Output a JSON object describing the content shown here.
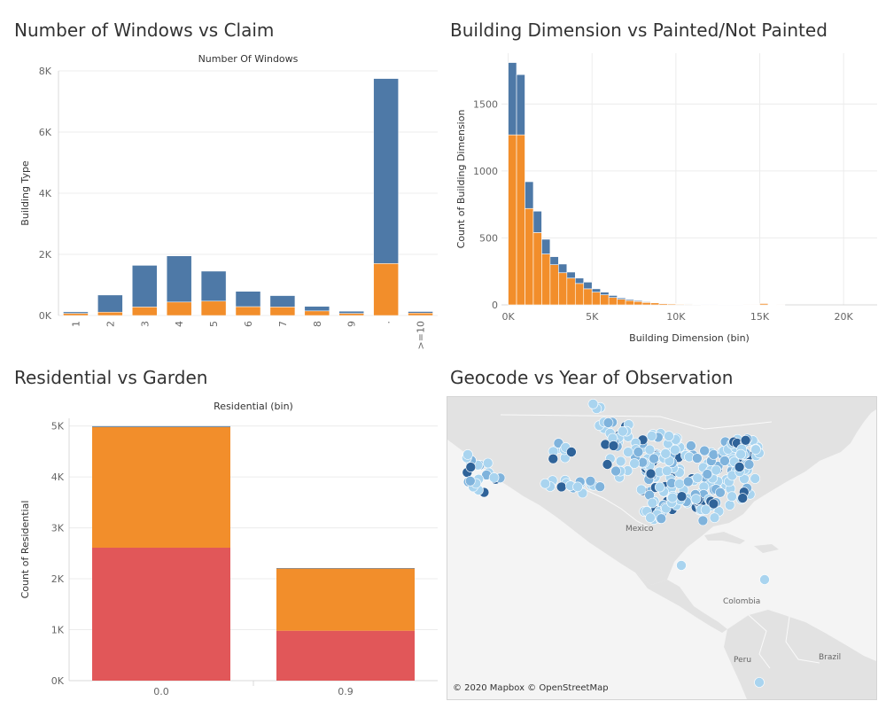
{
  "titles": {
    "windows": "Number of Windows vs Claim",
    "dimension": "Building Dimension vs Painted/Not Painted",
    "residential": "Residential vs Garden",
    "geocode": "Geocode vs Year of Observation"
  },
  "colors": {
    "blue": "#4e79a7",
    "orange": "#f28e2b",
    "red": "#e15759",
    "land": "#e2e2e2",
    "water": "#f4f4f4",
    "dot_light": "#a9d4ef",
    "dot_mid": "#7fb3dc",
    "dot_dark": "#2f6399"
  },
  "chart_data": [
    {
      "type": "bar",
      "stacked": true,
      "title": "Number of Windows vs Claim",
      "subtitle": "Number Of Windows",
      "ylabel": "Building Type",
      "xlabel": "",
      "categories": [
        "1",
        "2",
        "3",
        "4",
        "5",
        "6",
        "7",
        "8",
        "9",
        ".",
        ">=10"
      ],
      "ylim": [
        0,
        8000
      ],
      "yticks": [
        0,
        2000,
        4000,
        6000,
        8000
      ],
      "ytick_labels": [
        "0K",
        "2K",
        "4K",
        "6K",
        "8K"
      ],
      "series": [
        {
          "values": [
            70,
            110,
            280,
            440,
            470,
            290,
            280,
            150,
            70,
            1700,
            80
          ]
        },
        {
          "values": [
            50,
            560,
            1360,
            1510,
            980,
            500,
            370,
            150,
            70,
            6050,
            50
          ]
        }
      ],
      "grid": true,
      "legend": "none"
    },
    {
      "type": "bar",
      "stacked": true,
      "title": "Building Dimension vs Painted/Not Painted",
      "xlabel": "Building Dimension (bin)",
      "ylabel": "Count of Building Dimension",
      "bin_width": 500,
      "x": [
        0,
        500,
        1000,
        1500,
        2000,
        2500,
        3000,
        3500,
        4000,
        4500,
        5000,
        5500,
        6000,
        6500,
        7000,
        7500,
        8000,
        8500,
        9000,
        9500,
        10000,
        10500,
        11000,
        11500,
        12000,
        12500,
        13000,
        13500,
        14000,
        14500,
        15000,
        15500,
        16000
      ],
      "xlim": [
        -400,
        22000
      ],
      "xticks": [
        0,
        5000,
        10000,
        15000,
        20000
      ],
      "xtick_labels": [
        "0K",
        "5K",
        "10K",
        "15K",
        "20K"
      ],
      "ylim": [
        0,
        1880
      ],
      "yticks": [
        0,
        500,
        1000,
        1500
      ],
      "ytick_labels": [
        "0",
        "500",
        "1000",
        "1500"
      ],
      "series": [
        {
          "values": [
            1270,
            1270,
            720,
            540,
            380,
            300,
            240,
            200,
            160,
            120,
            95,
            75,
            55,
            42,
            32,
            25,
            18,
            15,
            10,
            8,
            6,
            5,
            4,
            3,
            3,
            2,
            2,
            2,
            1,
            1,
            10,
            2,
            1
          ]
        },
        {
          "values": [
            540,
            450,
            200,
            160,
            110,
            60,
            65,
            45,
            40,
            50,
            25,
            20,
            15,
            10,
            8,
            7,
            5,
            4,
            3,
            3,
            2,
            2,
            1,
            1,
            1,
            1,
            1,
            1,
            0,
            0,
            0,
            0,
            0
          ]
        }
      ],
      "grid": true,
      "legend": "none"
    },
    {
      "type": "bar",
      "stacked": true,
      "title": "Residential vs Garden",
      "subtitle": "Residential (bin)",
      "ylabel": "Count of Residential",
      "xlabel": "",
      "categories": [
        "0.0",
        "0.9"
      ],
      "ylim": [
        0,
        5150
      ],
      "yticks": [
        0,
        1000,
        2000,
        3000,
        4000,
        5000
      ],
      "ytick_labels": [
        "0K",
        "1K",
        "2K",
        "3K",
        "4K",
        "5K"
      ],
      "series": [
        {
          "values": [
            2610,
            980
          ]
        },
        {
          "values": [
            2370,
            1220
          ]
        },
        {
          "values": [
            15,
            10
          ]
        }
      ],
      "grid": true,
      "legend": "none"
    }
  ],
  "map": {
    "title": "Geocode vs Year of Observation",
    "attribution": "© 2020 Mapbox © OpenStreetMap",
    "places": [
      {
        "name": "Mexico"
      },
      {
        "name": "Colombia"
      },
      {
        "name": "Peru"
      },
      {
        "name": "Brazil"
      }
    ]
  }
}
